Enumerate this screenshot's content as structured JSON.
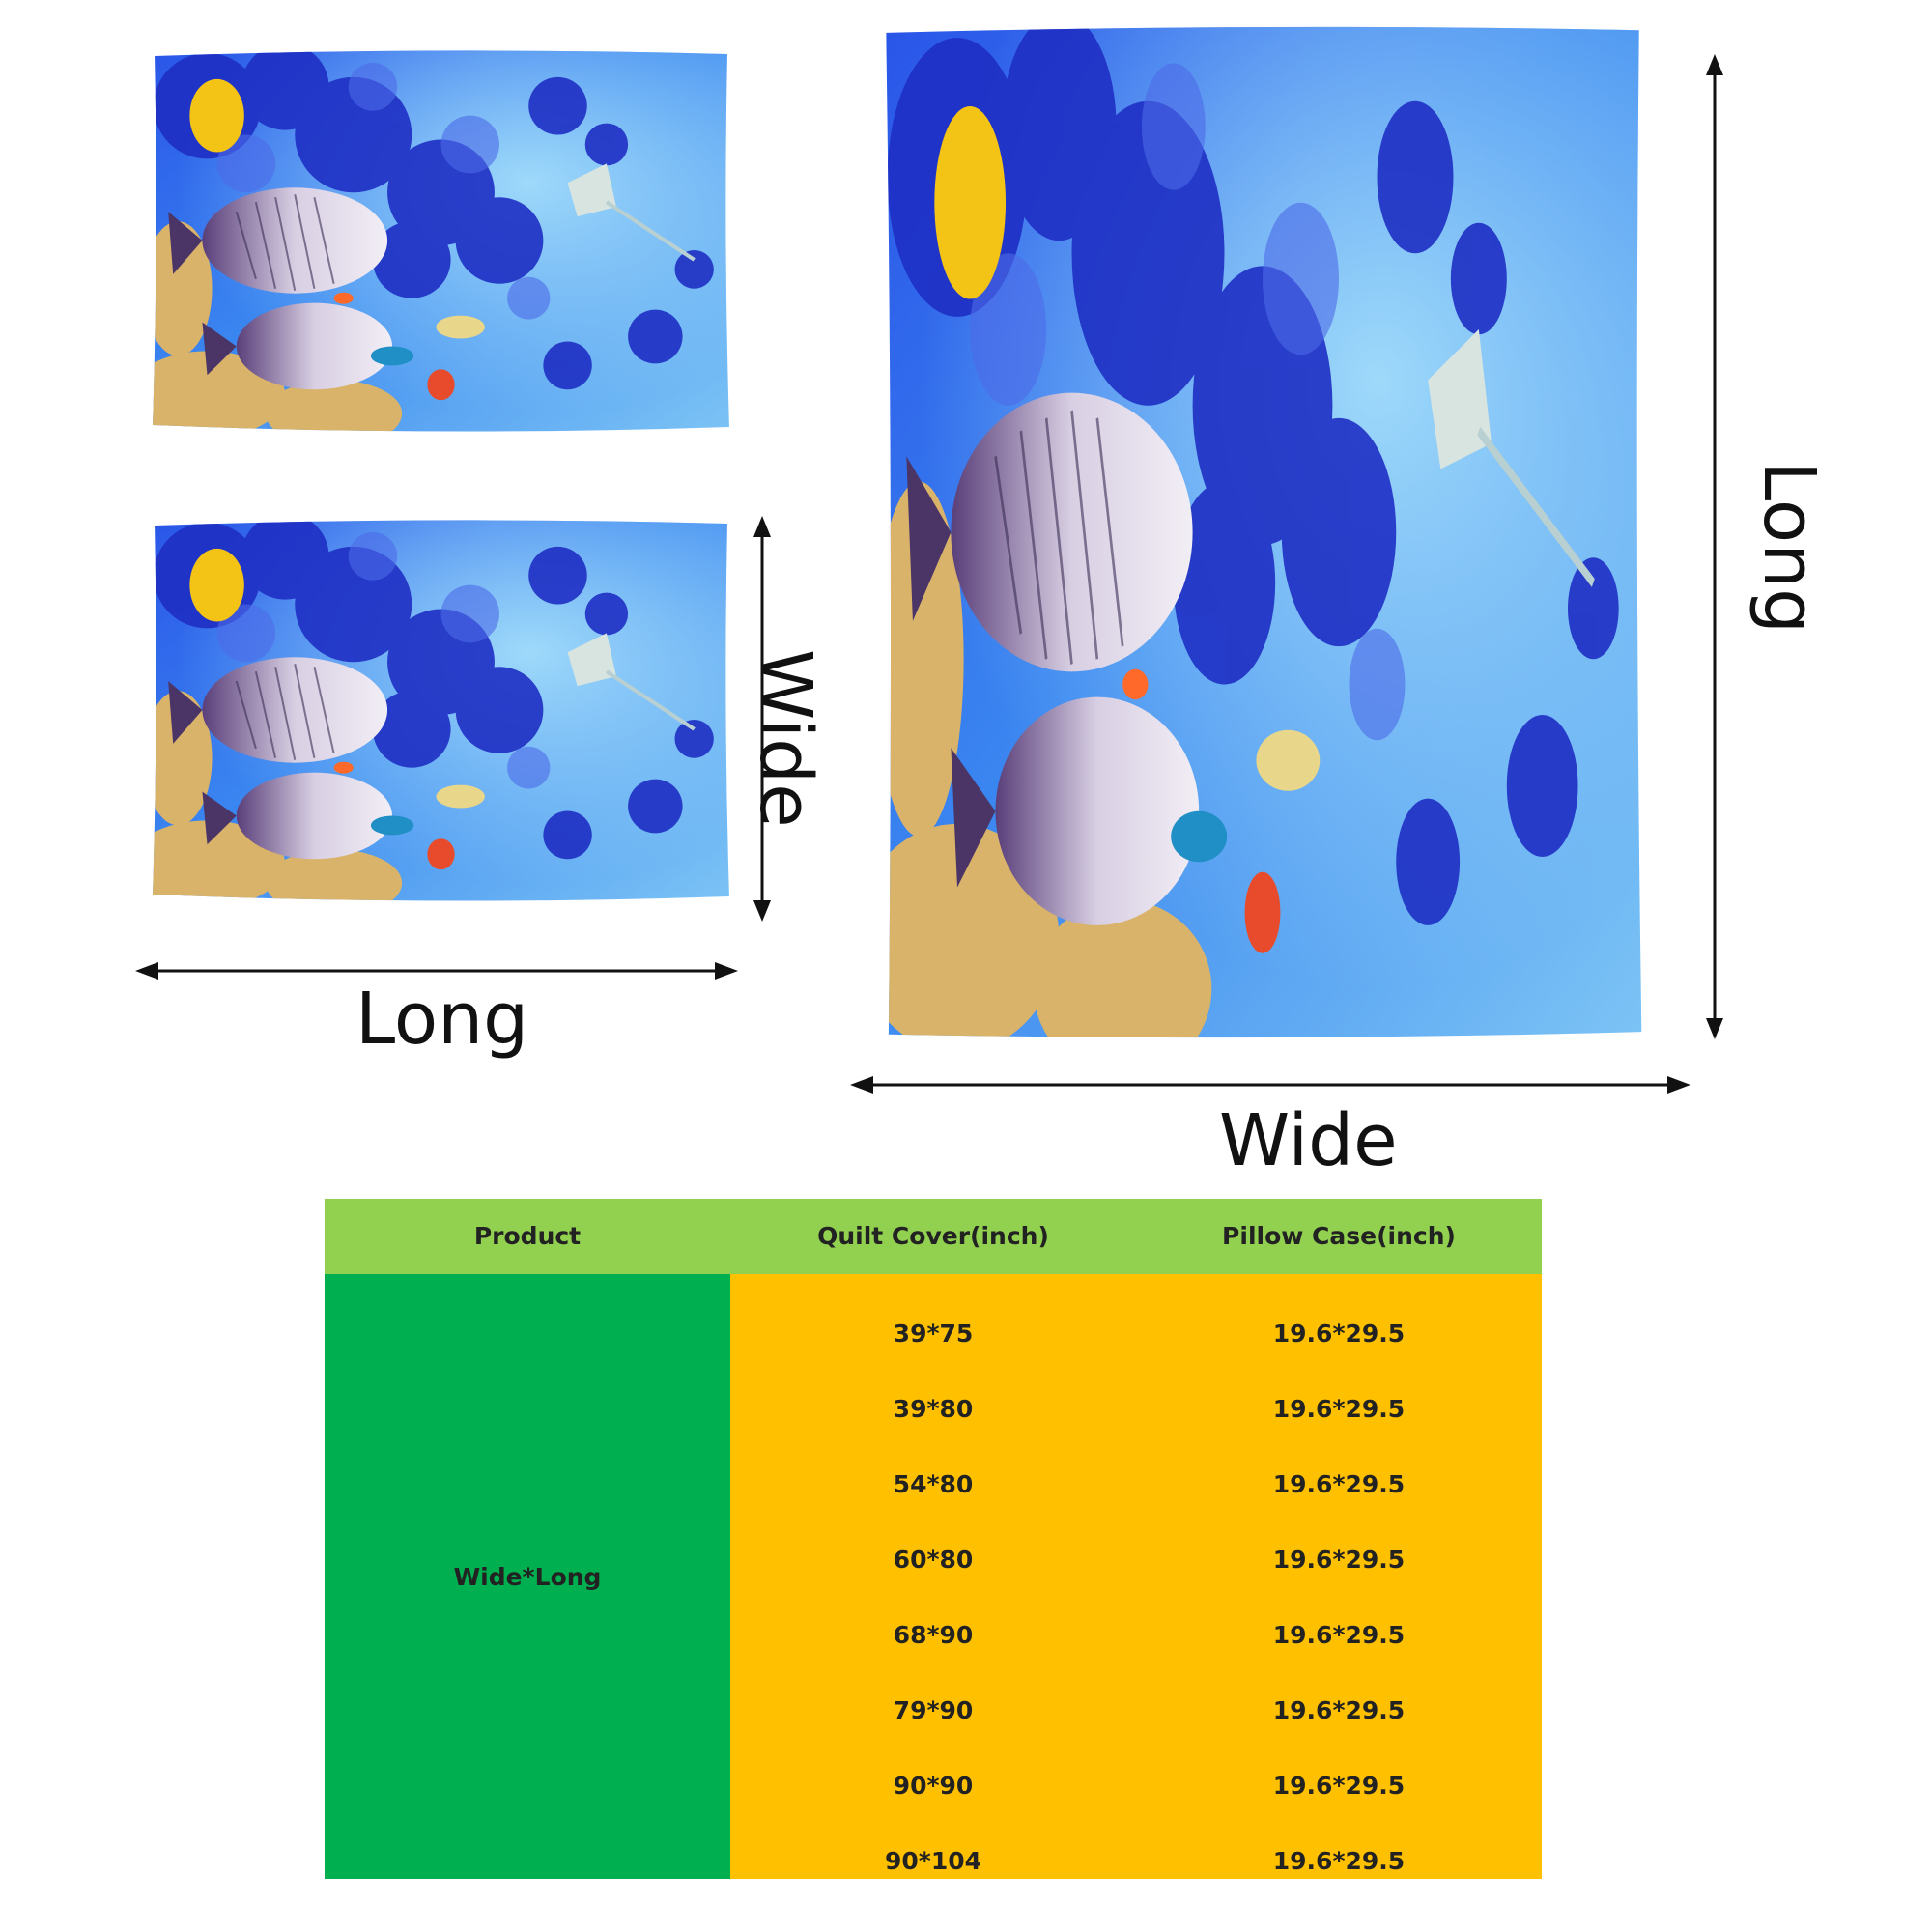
{
  "labels": {
    "pillow_wide": "Wide",
    "pillow_long": "Long",
    "quilt_long": "Long",
    "quilt_wide": "Wide"
  },
  "table": {
    "headers": [
      "Product",
      "Quilt Cover(inch)",
      "Pillow Case(inch)"
    ],
    "product": "Wide*Long",
    "rows": [
      {
        "quilt": "39*75",
        "pillow": "19.6*29.5"
      },
      {
        "quilt": "39*80",
        "pillow": "19.6*29.5"
      },
      {
        "quilt": "54*80",
        "pillow": "19.6*29.5"
      },
      {
        "quilt": "60*80",
        "pillow": "19.6*29.5"
      },
      {
        "quilt": "68*90",
        "pillow": "19.6*29.5"
      },
      {
        "quilt": "79*90",
        "pillow": "19.6*29.5"
      },
      {
        "quilt": "90*90",
        "pillow": "19.6*29.5"
      },
      {
        "quilt": "90*104",
        "pillow": "19.6*29.5"
      }
    ]
  },
  "colors": {
    "header_green": "#92d050",
    "product_green": "#00b050",
    "value_orange": "#ffc000",
    "ocean_blue": "#1f3fd6"
  }
}
